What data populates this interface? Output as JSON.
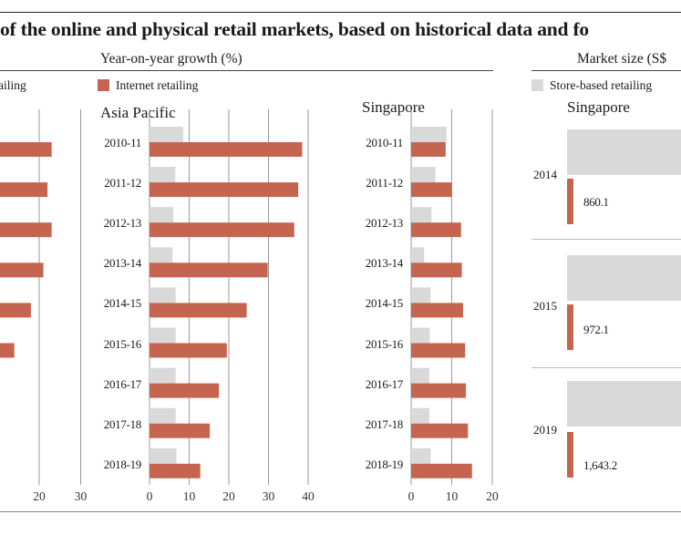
{
  "title": "of the online and physical retail markets, based on historical data and fo",
  "sections": {
    "growth_header": "Year-on-year growth (%)",
    "market_header": "Market size (S$"
  },
  "legend": {
    "left_store": "ailing",
    "internet": "Internet retailing",
    "store": "Store-based retailing"
  },
  "colors": {
    "internet": "#c5654f",
    "store": "#d9d9d9",
    "axis": "#999999"
  },
  "left_partial": {
    "ticks": [
      "20",
      "30"
    ],
    "internet_values": [
      23,
      22,
      23,
      21,
      18,
      14
    ]
  },
  "chart_data": [
    {
      "type": "bar",
      "orientation": "horizontal",
      "title": "Asia Pacific",
      "categories": [
        "2010-11",
        "2011-12",
        "2012-13",
        "2013-14",
        "2014-15",
        "2015-16",
        "2016-17",
        "2017-18",
        "2018-19"
      ],
      "series": [
        {
          "name": "Store-based retailing",
          "values": [
            8.5,
            6.5,
            6.0,
            5.8,
            6.6,
            6.6,
            6.6,
            6.6,
            6.8
          ]
        },
        {
          "name": "Internet retailing",
          "values": [
            38.5,
            37.5,
            36.5,
            29.8,
            24.5,
            19.5,
            17.5,
            15.2,
            12.8
          ]
        }
      ],
      "xlim": [
        0,
        40
      ],
      "xticks": [
        "0",
        "10",
        "20",
        "30",
        "40"
      ]
    },
    {
      "type": "bar",
      "orientation": "horizontal",
      "title": "Singapore",
      "categories": [
        "2010-11",
        "2011-12",
        "2012-13",
        "2013-14",
        "2014-15",
        "2015-16",
        "2016-17",
        "2017-18",
        "2018-19"
      ],
      "series": [
        {
          "name": "Store-based retailing",
          "values": [
            8.7,
            6.0,
            5.0,
            3.2,
            4.8,
            4.6,
            4.5,
            4.5,
            4.8
          ]
        },
        {
          "name": "Internet retailing",
          "values": [
            8.5,
            10.0,
            12.3,
            12.5,
            12.8,
            13.3,
            13.5,
            14.0,
            15.0
          ]
        }
      ],
      "xlim": [
        0,
        20
      ],
      "xticks": [
        "0",
        "10",
        "20"
      ]
    },
    {
      "type": "bar",
      "orientation": "horizontal",
      "title": "Singapore",
      "categories": [
        "2014",
        "2015",
        "2019"
      ],
      "series": [
        {
          "name": "Internet retailing",
          "values": [
            860.1,
            972.1,
            1643.2
          ],
          "labels": [
            "860.1",
            "972.1",
            "1,643.2"
          ]
        }
      ]
    }
  ]
}
